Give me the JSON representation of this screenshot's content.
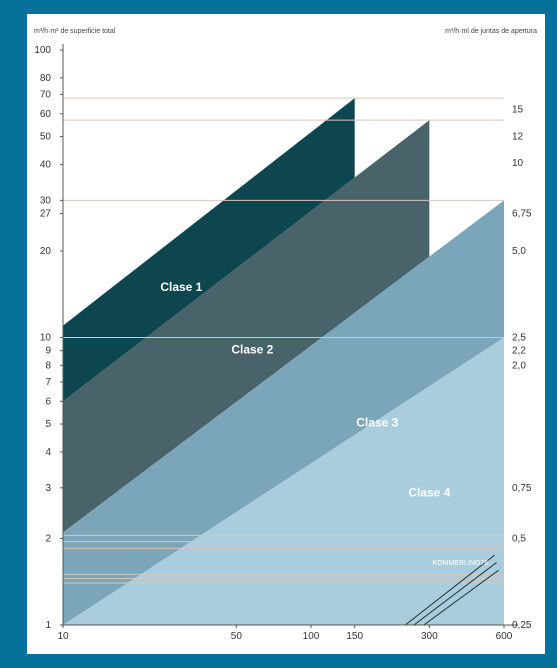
{
  "colors": {
    "frame": "#06719a",
    "clase_1": "#0e4650",
    "clase_2": "#48636a",
    "clase_3": "#7ba5b8",
    "clase_4": "#a9cddc",
    "reference_line": "#d9c7b8",
    "kommerling_line": "#1f2a2e"
  },
  "chart_data": {
    "type": "area",
    "left_axis_title": "m³/h·m² de superficie total",
    "right_axis_title": "m³/h·ml de juntas de apertura",
    "x_scale": "log",
    "y_scale": "log",
    "xlim": [
      10,
      600
    ],
    "ylim": [
      1,
      100
    ],
    "x_ticks": [
      {
        "value": 10,
        "label": "10"
      },
      {
        "value": 50,
        "label": "50"
      },
      {
        "value": 100,
        "label": "100"
      },
      {
        "value": 150,
        "label": "150"
      },
      {
        "value": 300,
        "label": "300"
      },
      {
        "value": 600,
        "label": "600"
      }
    ],
    "left_ticks": [
      {
        "value": 100,
        "label": "100"
      },
      {
        "value": 80,
        "label": "80"
      },
      {
        "value": 70,
        "label": "70"
      },
      {
        "value": 60,
        "label": "60"
      },
      {
        "value": 50,
        "label": "50"
      },
      {
        "value": 40,
        "label": "40"
      },
      {
        "value": 30,
        "label": "30"
      },
      {
        "value": 27,
        "label": "27"
      },
      {
        "value": 20,
        "label": "20"
      },
      {
        "value": 10,
        "label": "10"
      },
      {
        "value": 9,
        "label": "9"
      },
      {
        "value": 8,
        "label": "8"
      },
      {
        "value": 7,
        "label": "7"
      },
      {
        "value": 6,
        "label": "6"
      },
      {
        "value": 5,
        "label": "5"
      },
      {
        "value": 4,
        "label": "4"
      },
      {
        "value": 3,
        "label": "3"
      },
      {
        "value": 2,
        "label": "2"
      },
      {
        "value": 1,
        "label": "1"
      }
    ],
    "right_ticks": [
      {
        "value": 62,
        "label": "15"
      },
      {
        "value": 50,
        "label": "12"
      },
      {
        "value": 40.5,
        "label": "10"
      },
      {
        "value": 27,
        "label": "6,75"
      },
      {
        "value": 20,
        "label": "5,0"
      },
      {
        "value": 10,
        "label": "2,5"
      },
      {
        "value": 9,
        "label": "2,2"
      },
      {
        "value": 8,
        "label": "2,0"
      },
      {
        "value": 3,
        "label": "0,75"
      },
      {
        "value": 2,
        "label": "0,5"
      },
      {
        "value": 1,
        "label": "0,25"
      }
    ],
    "bands": [
      {
        "name": "Clase 1",
        "x_end": 150,
        "lower_at_10": 6,
        "upper_at_10": 11,
        "upper_at_150": 68,
        "label_x": 30,
        "label_y": 14.5
      },
      {
        "name": "Clase 2",
        "x_end": 300,
        "lower_at_10": 2.1,
        "upper_at_10": 6,
        "upper_at_300": 57,
        "label_x": 58,
        "label_y": 8.8
      },
      {
        "name": "Clase 3",
        "x_end": 600,
        "lower_at_10": 1,
        "upper_at_10": 2.1,
        "upper_at_600": 30,
        "label_x": 185,
        "label_y": 4.9
      },
      {
        "name": "Clase 4",
        "x_end": 600,
        "lower_at_10": 1,
        "upper_at_10": 1,
        "upper_at_600": 10,
        "label_x": 300,
        "label_y": 2.8
      }
    ],
    "reference_lines": [
      68,
      57,
      30,
      10,
      2.05,
      1.95,
      1.85,
      1.5,
      1.45,
      1.4
    ],
    "annotation": "KÖMMERLING76",
    "kommerling_series": [
      {
        "x": [
          240,
          550
        ],
        "y": [
          1.0,
          1.75
        ]
      },
      {
        "x": [
          260,
          560
        ],
        "y": [
          1.0,
          1.65
        ]
      },
      {
        "x": [
          285,
          570
        ],
        "y": [
          1.0,
          1.55
        ]
      }
    ]
  }
}
